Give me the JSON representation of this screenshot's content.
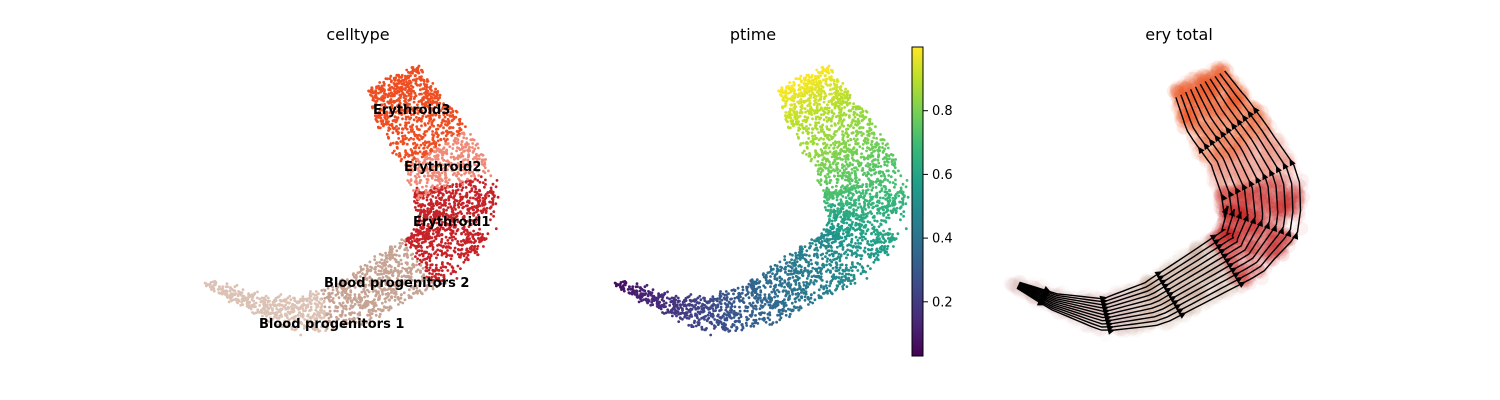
{
  "chart_data": [
    {
      "type": "scatter",
      "title": "celltype",
      "axis_labels_shown": false,
      "color_by": "categorical",
      "categories": [
        {
          "name": "Blood progenitors 1",
          "color": "#dcc2b4"
        },
        {
          "name": "Blood progenitors 2",
          "color": "#c6a393"
        },
        {
          "name": "Erythroid1",
          "color": "#c72228"
        },
        {
          "name": "Erythroid2",
          "color": "#f08a78"
        },
        {
          "name": "Erythroid3",
          "color": "#ef4e22"
        }
      ],
      "cluster_labels": [
        "Erythroid3",
        "Erythroid2",
        "Erythroid1",
        "Blood progenitors 2",
        "Blood progenitors 1"
      ]
    },
    {
      "type": "scatter",
      "title": "ptime",
      "axis_labels_shown": false,
      "color_by": "continuous",
      "colormap": "viridis",
      "colorbar": {
        "range": [
          0.03,
          1.0
        ],
        "ticks": [
          0.2,
          0.4,
          0.6,
          0.8
        ],
        "tick_labels": [
          "0.2",
          "0.4",
          "0.6",
          "0.8"
        ],
        "stops": [
          "#440154",
          "#482878",
          "#3e4989",
          "#31688e",
          "#26828e",
          "#1f9e89",
          "#35b779",
          "#6ece58",
          "#b5de2b",
          "#fde725"
        ]
      }
    },
    {
      "type": "scatter",
      "title": "ery total",
      "axis_labels_shown": false,
      "color_by": "categorical",
      "overlay": "velocity streamlines (black arrows)"
    }
  ]
}
